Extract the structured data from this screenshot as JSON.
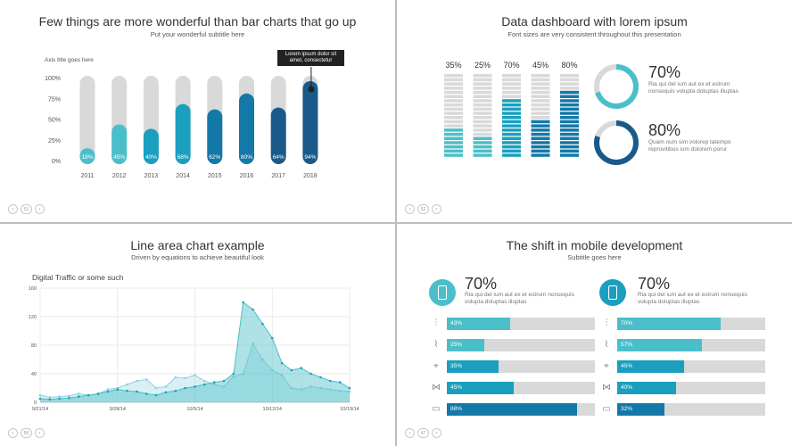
{
  "slides": {
    "s1": {
      "title": "Few things are more wonderful than bar charts that go up",
      "subtitle": "Put your wonderful subtitle here",
      "axis_title": "Axis title goes here",
      "callout": "Lorem ipsum dolor sit amet, consectetur",
      "page": "51"
    },
    "s2": {
      "title": "Data dashboard with lorem ipsum",
      "subtitle": "Font sizes are very consistent throughout this presentation",
      "donuts": [
        {
          "value": "70%",
          "text": "Ria qui del ium aut ex et estrum nonsequis volupta doluptas illuptas"
        },
        {
          "value": "80%",
          "text": "Quam num sim volorep tatempo reprovitibus ium dolorem porur"
        }
      ],
      "page": "52"
    },
    "s3": {
      "title": "Line area chart example",
      "subtitle": "Driven by equations to achieve beautiful look",
      "chart_title": "Digital Traffic or some such",
      "page": "50"
    },
    "s4": {
      "title": "The shift in mobile development",
      "subtitle": "Subtitle goes here",
      "left": {
        "value": "70%",
        "text": "Ria qui del ium aut ex et estrum nonsequis volupta doluptas illuptas",
        "rows": [
          "43%",
          "25%",
          "35%",
          "45%",
          "88%"
        ],
        "fractions": [
          0.43,
          0.25,
          0.35,
          0.45,
          0.88
        ]
      },
      "right": {
        "value": "70%",
        "text": "Ria qui del ium aut ex et estrum nonsequis volupta doluptas illuptas",
        "rows": [
          "70%",
          "57%",
          "45%",
          "40%",
          "32%"
        ],
        "fractions": [
          0.7,
          0.57,
          0.45,
          0.4,
          0.32
        ]
      },
      "page": "47"
    }
  },
  "colors": {
    "teal_light": "#4bbfc9",
    "teal": "#1a9fbf",
    "blue": "#1479a8",
    "navy": "#1a5a8a",
    "gray": "#d9d9d9"
  },
  "chart_data": [
    {
      "type": "bar",
      "categories": [
        "2011",
        "2012",
        "2013",
        "2014",
        "2015",
        "2016",
        "2017",
        "2018"
      ],
      "values": [
        18,
        45,
        40,
        68,
        62,
        80,
        64,
        94
      ],
      "labels": [
        "18%",
        "45%",
        "40%",
        "68%",
        "62%",
        "80%",
        "64%",
        "94%"
      ],
      "yticks": [
        "100%",
        "75%",
        "50%",
        "25%",
        "0%"
      ],
      "ylim": [
        0,
        100
      ],
      "title": "Few things are more wonderful than bar charts that go up",
      "ylabel": "Axis title goes here"
    },
    {
      "type": "bar",
      "categories": [
        "35%",
        "25%",
        "70%",
        "45%",
        "80%"
      ],
      "values": [
        35,
        25,
        70,
        45,
        80
      ],
      "ylim": [
        0,
        100
      ]
    },
    {
      "type": "area",
      "title": "Digital Traffic or some such",
      "x_ticks": [
        "9/21/14",
        "9/28/14",
        "10/5/14",
        "10/12/14",
        "10/19/14"
      ],
      "y_ticks": [
        "160",
        "120",
        "80",
        "40",
        "0"
      ],
      "ylim": [
        0,
        160
      ],
      "series": [
        {
          "values": [
            10,
            7,
            8,
            9,
            12,
            10,
            12,
            18,
            20,
            25,
            30,
            32,
            20,
            22,
            35,
            34,
            38,
            30,
            25,
            22,
            36,
            40,
            82,
            60,
            45,
            38,
            20,
            18,
            22,
            20,
            18,
            16,
            15
          ]
        },
        {
          "values": [
            5,
            4,
            5,
            6,
            8,
            10,
            12,
            15,
            18,
            16,
            15,
            12,
            10,
            14,
            16,
            20,
            22,
            25,
            28,
            30,
            40,
            140,
            130,
            110,
            90,
            55,
            45,
            48,
            40,
            35,
            30,
            28,
            20
          ]
        }
      ]
    },
    {
      "type": "bar",
      "series": [
        {
          "values": [
            43,
            25,
            35,
            45,
            88
          ]
        },
        {
          "values": [
            70,
            57,
            45,
            40,
            32
          ]
        }
      ],
      "ylim": [
        0,
        100
      ]
    }
  ]
}
